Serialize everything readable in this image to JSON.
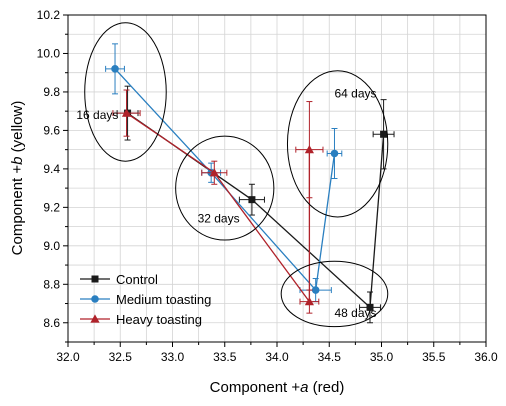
{
  "chart_data": {
    "type": "scatter",
    "xlabel_prefix": "Component +",
    "xlabel_var": "a",
    "xlabel_suffix": " (red)",
    "ylabel_prefix": "Component +",
    "ylabel_var": "b",
    "ylabel_suffix": " (yellow)",
    "xlim": [
      32.0,
      36.0
    ],
    "ylim": [
      8.5,
      10.2
    ],
    "x_ticks": [
      32.0,
      32.5,
      33.0,
      33.5,
      34.0,
      34.5,
      35.0,
      35.5,
      36.0
    ],
    "y_ticks": [
      8.6,
      8.8,
      9.0,
      9.2,
      9.4,
      9.6,
      9.8,
      10.0,
      10.2
    ],
    "x_tick_labels": [
      "32.0",
      "32.5",
      "33.0",
      "33.5",
      "34.0",
      "34.5",
      "35.0",
      "35.5",
      "36.0"
    ],
    "y_tick_labels": [
      "8.6",
      "8.8",
      "9.0",
      "9.2",
      "9.4",
      "9.6",
      "9.8",
      "10.0",
      "10.2"
    ],
    "grid": true,
    "legend_position": "bottom-left",
    "series": [
      {
        "name": "Control",
        "color": "#1a1a1a",
        "marker": "square",
        "points": [
          {
            "x": 32.57,
            "y": 9.69,
            "xerr": 0.1,
            "yerr": 0.14
          },
          {
            "x": 33.76,
            "y": 9.24,
            "xerr": 0.12,
            "yerr": 0.08
          },
          {
            "x": 34.89,
            "y": 8.68,
            "xerr": 0.1,
            "yerr": 0.08
          },
          {
            "x": 35.02,
            "y": 9.58,
            "xerr": 0.1,
            "yerr": 0.18
          }
        ]
      },
      {
        "name": "Medium toasting",
        "color": "#2a7fc0",
        "marker": "circle",
        "points": [
          {
            "x": 32.45,
            "y": 9.92,
            "xerr": 0.09,
            "yerr": 0.13
          },
          {
            "x": 33.37,
            "y": 9.38,
            "xerr": 0.09,
            "yerr": 0.05
          },
          {
            "x": 34.37,
            "y": 8.77,
            "xerr": 0.15,
            "yerr": 0.06
          },
          {
            "x": 34.55,
            "y": 9.48,
            "xerr": 0.07,
            "yerr": 0.13
          }
        ]
      },
      {
        "name": "Heavy toasting",
        "color": "#b0222a",
        "marker": "triangle",
        "points": [
          {
            "x": 32.56,
            "y": 9.69,
            "xerr": 0.13,
            "yerr": 0.12
          },
          {
            "x": 33.4,
            "y": 9.38,
            "xerr": 0.12,
            "yerr": 0.06
          },
          {
            "x": 34.31,
            "y": 8.71,
            "xerr": 0.09,
            "yerr": 0.06
          },
          {
            "x": 34.31,
            "y": 9.5,
            "xerr": 0.13,
            "yerr": 0.25
          }
        ]
      }
    ],
    "ellipses": [
      {
        "label": "16 days",
        "cx": 32.55,
        "cy": 9.8,
        "rx": 0.39,
        "ry": 0.36,
        "label_x": 32.08,
        "label_y": 9.66
      },
      {
        "label": "32 days",
        "cx": 33.5,
        "cy": 9.3,
        "rx": 0.47,
        "ry": 0.27,
        "label_x": 33.24,
        "label_y": 9.12
      },
      {
        "label": "48 days",
        "cx": 34.55,
        "cy": 8.75,
        "rx": 0.51,
        "ry": 0.17,
        "label_x": 34.55,
        "label_y": 8.63
      },
      {
        "label": "64 days",
        "cx": 34.58,
        "cy": 9.53,
        "rx": 0.48,
        "ry": 0.38,
        "label_x": 34.55,
        "label_y": 9.77
      }
    ]
  }
}
